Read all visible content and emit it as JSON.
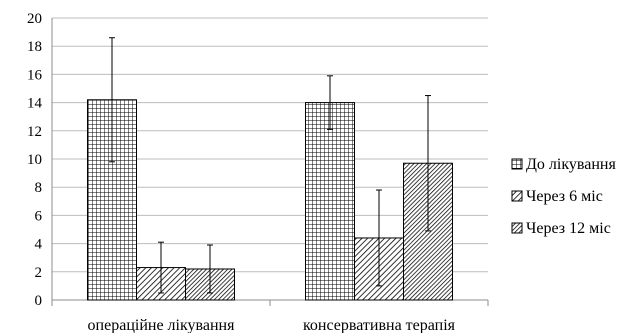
{
  "chart_data": {
    "type": "bar",
    "categories": [
      "операційне лікування",
      "консервативна терапія"
    ],
    "series": [
      {
        "name": "До лікування",
        "pattern": "grid",
        "values": [
          14.2,
          14.0
        ],
        "error": [
          4.4,
          1.9
        ]
      },
      {
        "name": "Через 6 міс",
        "pattern": "diagonal",
        "values": [
          2.3,
          4.4
        ],
        "error": [
          1.8,
          3.4
        ]
      },
      {
        "name": "Через 12 міс",
        "pattern": "dense-diagonal",
        "values": [
          2.2,
          9.7
        ],
        "error": [
          1.7,
          4.8
        ]
      }
    ],
    "ylim": [
      0,
      20
    ],
    "yticks": [
      "0",
      "2",
      "4",
      "6",
      "8",
      "10",
      "12",
      "14",
      "16",
      "18",
      "20"
    ],
    "grid": true,
    "legend": "right",
    "xlabel": "",
    "ylabel": "",
    "title": ""
  }
}
